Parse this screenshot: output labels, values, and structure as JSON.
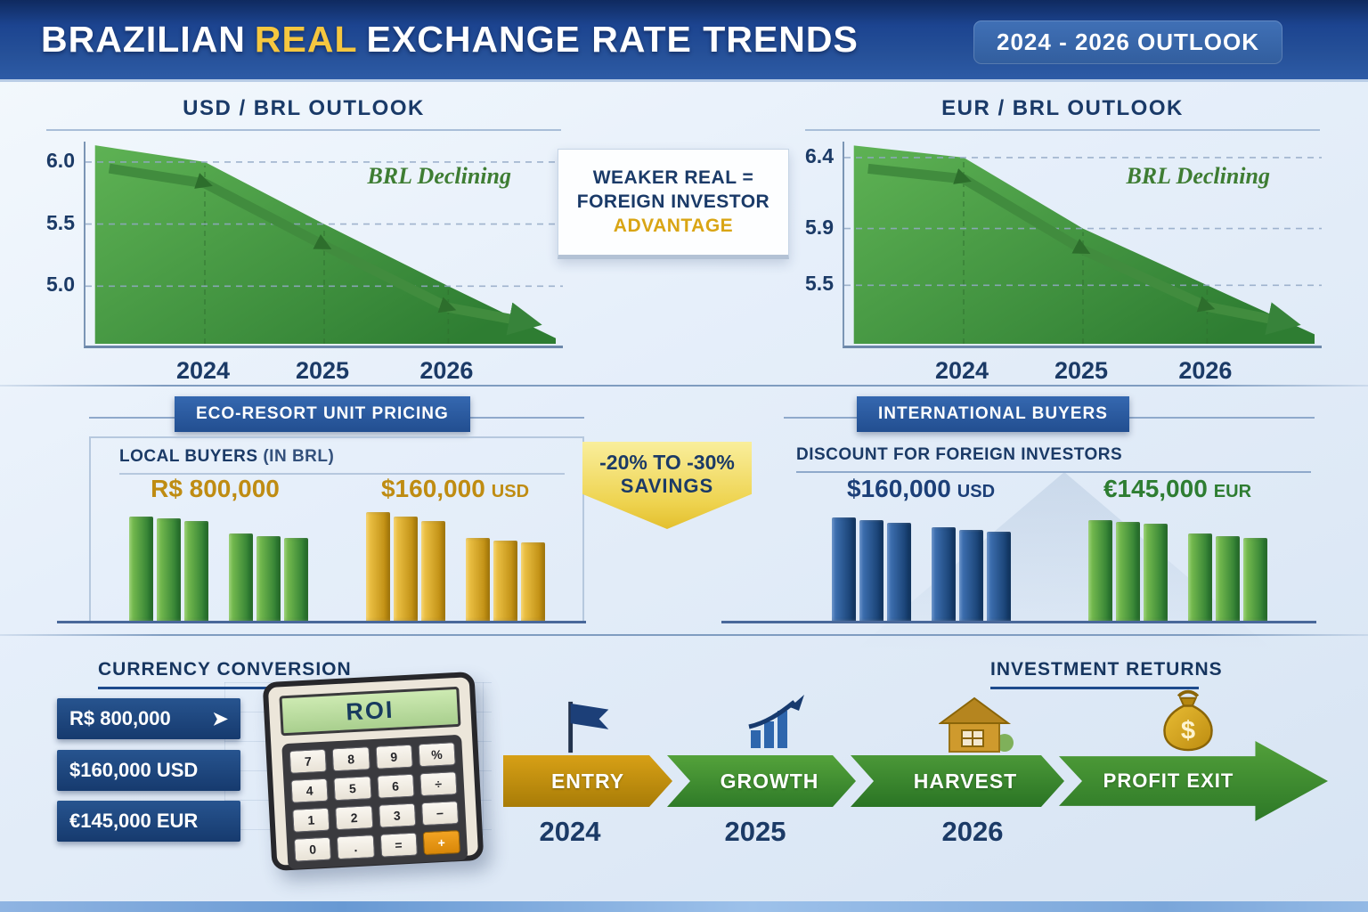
{
  "header": {
    "title_words": [
      "BRAZILIAN",
      "REAL",
      "EXCHANGE RATE TRENDS"
    ],
    "outlook": "2024 - 2026 OUTLOOK"
  },
  "callout": {
    "line1": "WEAKER REAL =",
    "line2": "FOREIGN INVESTOR",
    "line3": "ADVANTAGE"
  },
  "pricing": {
    "header": "ECO-RESORT UNIT PRICING",
    "local_label": "LOCAL BUYERS",
    "local_label_note": "(IN BRL)"
  },
  "savings_badge": {
    "line1": "-20% TO -30%",
    "line2": "SAVINGS"
  },
  "international": {
    "header": "INTERNATIONAL BUYERS",
    "sub_label": "DISCOUNT FOR FOREIGN INVESTORS"
  },
  "conversion": {
    "header": "CURRENCY CONVERSION",
    "rows": [
      {
        "text": "R$ 800,000",
        "arrow": "➤"
      },
      {
        "text": "$160,000 USD",
        "arrow": ""
      },
      {
        "text": "€145,000 EUR",
        "arrow": ""
      }
    ]
  },
  "calculator": {
    "display": "ROI",
    "keys": [
      "7",
      "8",
      "9",
      "%",
      "4",
      "5",
      "6",
      "÷",
      "1",
      "2",
      "3",
      "−",
      "0",
      ".",
      "=",
      "+"
    ],
    "accent_key": "+"
  },
  "returns": {
    "header": "INVESTMENT RETURNS",
    "money_symbol": "$",
    "timeline": [
      {
        "label": "ENTRY",
        "year": "2024"
      },
      {
        "label": "GROWTH",
        "year": "2025"
      },
      {
        "label": "HARVEST",
        "year": "2026"
      },
      {
        "label": "PROFIT EXIT",
        "year": ""
      }
    ]
  },
  "colors": {
    "header_blue": "#1d4890",
    "accent_gold": "#f6c73f",
    "navy_text": "#1b3a66",
    "green_dark": "#2e7d32",
    "palettes": {
      "green": [
        "#82c654",
        "#2e7d32"
      ],
      "gold": [
        "#f4ca4e",
        "#bd8c10"
      ],
      "blue": [
        "#4478bc",
        "#163e6f"
      ]
    }
  },
  "chart_data": [
    {
      "id": "usd-brl",
      "type": "area",
      "title": "USD / BRL OUTLOOK",
      "x": [
        "2024",
        "2025",
        "2026"
      ],
      "values": [
        6.0,
        5.5,
        5.0
      ],
      "yticks": [
        6.0,
        5.5,
        5.0
      ],
      "ylim": [
        4.55,
        6.15
      ],
      "annotation": "BRL Declining",
      "trend": "declining"
    },
    {
      "id": "eur-brl",
      "type": "area",
      "title": "EUR / BRL OUTLOOK",
      "x": [
        "2024",
        "2025",
        "2026"
      ],
      "values": [
        6.4,
        5.9,
        5.5
      ],
      "yticks": [
        6.4,
        5.9,
        5.5
      ],
      "ylim": [
        5.1,
        6.5
      ],
      "annotation": "BRL Declining",
      "trend": "declining"
    },
    {
      "id": "bars-brl",
      "type": "bar",
      "price": "R$ 800,000",
      "suffix": "",
      "currency": "BRL",
      "palette": "green",
      "bar_heights_rel": [
        0.96,
        0.94,
        0.92,
        0,
        0.8,
        0.78,
        0.76
      ]
    },
    {
      "id": "bars-usd-local",
      "type": "bar",
      "price": "$160,000",
      "suffix": "USD",
      "currency": "USD",
      "palette": "gold",
      "bar_heights_rel": [
        1.0,
        0.96,
        0.92,
        0,
        0.76,
        0.74,
        0.72
      ]
    },
    {
      "id": "bars-usd-intl",
      "type": "bar",
      "price": "$160,000",
      "suffix": "USD",
      "currency": "USD",
      "palette": "blue",
      "bar_heights_rel": [
        0.95,
        0.93,
        0.9,
        0,
        0.86,
        0.84,
        0.82
      ]
    },
    {
      "id": "bars-eur-intl",
      "type": "bar",
      "price": "€145,000",
      "suffix": "EUR",
      "currency": "EUR",
      "palette": "green",
      "bar_heights_rel": [
        0.93,
        0.91,
        0.89,
        0,
        0.8,
        0.78,
        0.76
      ]
    }
  ]
}
